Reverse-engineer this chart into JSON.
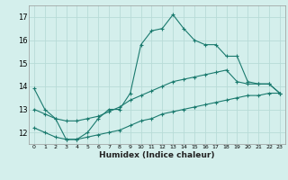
{
  "title": "",
  "xlabel": "Humidex (Indice chaleur)",
  "ylabel": "",
  "background_color": "#d4efec",
  "grid_color": "#b8dbd7",
  "line_color": "#1a7a6e",
  "xlim": [
    -0.5,
    23.5
  ],
  "ylim": [
    11.5,
    17.5
  ],
  "yticks": [
    12,
    13,
    14,
    15,
    16,
    17
  ],
  "xticks": [
    0,
    1,
    2,
    3,
    4,
    5,
    6,
    7,
    8,
    9,
    10,
    11,
    12,
    13,
    14,
    15,
    16,
    17,
    18,
    19,
    20,
    21,
    22,
    23
  ],
  "xtick_labels": [
    "0",
    "1",
    "2",
    "3",
    "4",
    "5",
    "6",
    "7",
    "8",
    "9",
    "10",
    "11",
    "12",
    "13",
    "14",
    "15",
    "16",
    "17",
    "18",
    "19",
    "20",
    "21",
    "22",
    "23"
  ],
  "series": [
    {
      "x": [
        0,
        1,
        2,
        3,
        4,
        5,
        6,
        7,
        8,
        9,
        10,
        11,
        12,
        13,
        14,
        15,
        16,
        17,
        18,
        19,
        20,
        21,
        22,
        23
      ],
      "y": [
        13.9,
        13.0,
        12.6,
        11.7,
        11.7,
        12.0,
        12.6,
        13.0,
        13.0,
        13.7,
        15.8,
        16.4,
        16.5,
        17.1,
        16.5,
        16.0,
        15.8,
        15.8,
        15.3,
        15.3,
        14.2,
        14.1,
        14.1,
        13.7
      ]
    },
    {
      "x": [
        0,
        1,
        2,
        3,
        4,
        5,
        6,
        7,
        8,
        9,
        10,
        11,
        12,
        13,
        14,
        15,
        16,
        17,
        18,
        19,
        20,
        21,
        22,
        23
      ],
      "y": [
        13.0,
        12.8,
        12.6,
        12.5,
        12.5,
        12.6,
        12.7,
        12.9,
        13.1,
        13.4,
        13.6,
        13.8,
        14.0,
        14.2,
        14.3,
        14.4,
        14.5,
        14.6,
        14.7,
        14.2,
        14.1,
        14.1,
        14.1,
        13.7
      ]
    },
    {
      "x": [
        0,
        1,
        2,
        3,
        4,
        5,
        6,
        7,
        8,
        9,
        10,
        11,
        12,
        13,
        14,
        15,
        16,
        17,
        18,
        19,
        20,
        21,
        22,
        23
      ],
      "y": [
        12.2,
        12.0,
        11.8,
        11.7,
        11.7,
        11.8,
        11.9,
        12.0,
        12.1,
        12.3,
        12.5,
        12.6,
        12.8,
        12.9,
        13.0,
        13.1,
        13.2,
        13.3,
        13.4,
        13.5,
        13.6,
        13.6,
        13.7,
        13.7
      ]
    }
  ]
}
